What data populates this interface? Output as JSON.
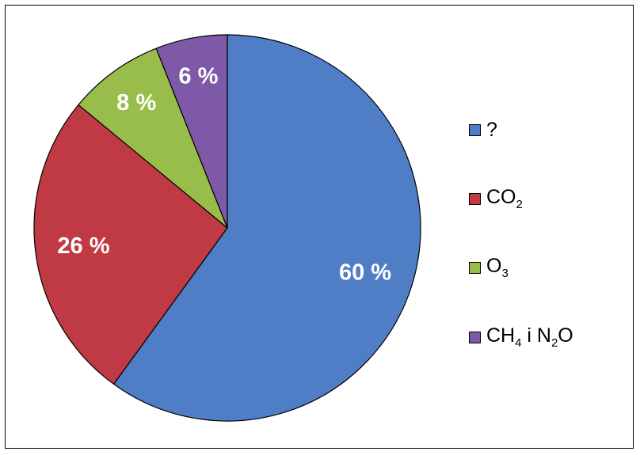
{
  "chart_data": {
    "type": "pie",
    "start_angle_deg": 0,
    "direction": "clockwise",
    "slices": [
      {
        "label": "?",
        "label_parts": [
          [
            "?",
            ""
          ]
        ],
        "value": 60,
        "data_label": "60 %",
        "color": "#4f7ec6"
      },
      {
        "label": "CO2",
        "label_parts": [
          [
            "CO",
            "2"
          ]
        ],
        "value": 26,
        "data_label": "26 %",
        "color": "#c03a45"
      },
      {
        "label": "O3",
        "label_parts": [
          [
            "O",
            "3"
          ]
        ],
        "value": 8,
        "data_label": "8 %",
        "color": "#98bd4a"
      },
      {
        "label": "CH4 i N2O",
        "label_parts": [
          [
            "CH",
            "4"
          ],
          [
            " i N",
            "2"
          ],
          [
            "O",
            ""
          ]
        ],
        "value": 6,
        "data_label": "6 %",
        "color": "#7e59a8"
      }
    ],
    "legend_position": "right",
    "data_label_color": "#ffffff"
  }
}
